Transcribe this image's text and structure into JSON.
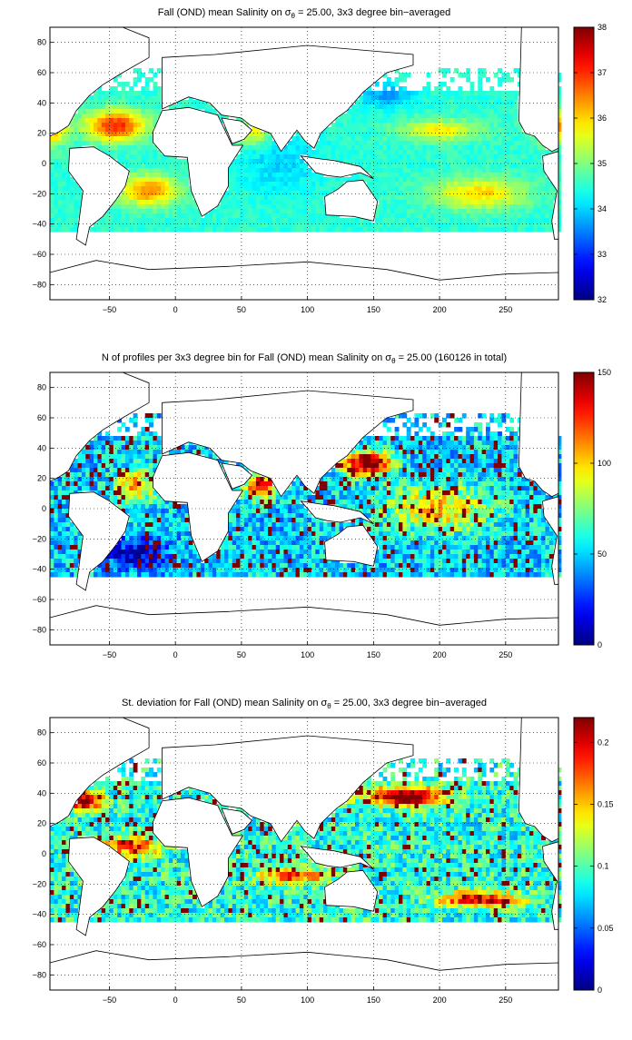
{
  "charts": [
    {
      "type": "heatmap",
      "title": "Fall (OND) mean Salinity on σ",
      "title_sub": "θ",
      "title_rest": " = 25.00, 3x3 degree bin−averaged",
      "xticks": [
        "−50",
        "0",
        "50",
        "100",
        "150",
        "200",
        "250"
      ],
      "yticks": [
        "80",
        "60",
        "40",
        "20",
        "0",
        "−20",
        "−40",
        "−60",
        "−80"
      ],
      "xlim": [
        -95,
        290
      ],
      "ylim": [
        -90,
        90
      ],
      "colorbar": {
        "min": 32,
        "max": 38,
        "ticks": [
          "32",
          "33",
          "34",
          "35",
          "36",
          "37",
          "38"
        ]
      },
      "colormap": "jet",
      "grid": "dotted"
    },
    {
      "type": "heatmap",
      "title": "N of profiles per 3x3 degree bin for Fall (OND) mean Salinity on σ",
      "title_sub": "θ",
      "title_rest": " = 25.00 (160126 in total)",
      "xticks": [
        "−50",
        "0",
        "50",
        "100",
        "150",
        "200",
        "250"
      ],
      "yticks": [
        "80",
        "60",
        "40",
        "20",
        "0",
        "−20",
        "−40",
        "−60",
        "−80"
      ],
      "xlim": [
        -95,
        290
      ],
      "ylim": [
        -90,
        90
      ],
      "colorbar": {
        "min": 0,
        "max": 150,
        "ticks": [
          "0",
          "50",
          "100",
          "150"
        ]
      },
      "colormap": "jet",
      "grid": "dotted"
    },
    {
      "type": "heatmap",
      "title": "St. deviation for Fall (OND) mean Salinity on σ",
      "title_sub": "θ",
      "title_rest": " = 25.00, 3x3 degree bin−averaged",
      "xticks": [
        "−50",
        "0",
        "50",
        "100",
        "150",
        "200",
        "250"
      ],
      "yticks": [
        "80",
        "60",
        "40",
        "20",
        "0",
        "−20",
        "−40",
        "−60",
        "−80"
      ],
      "xlim": [
        -95,
        290
      ],
      "ylim": [
        -90,
        90
      ],
      "colorbar": {
        "min": 0,
        "max": 0.22,
        "ticks": [
          "0",
          "0.05",
          "0.1",
          "0.15",
          "0.2"
        ]
      },
      "colormap": "jet",
      "grid": "dotted"
    }
  ]
}
